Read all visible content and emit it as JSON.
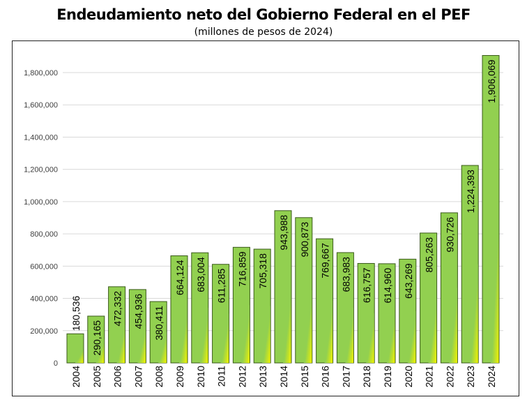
{
  "chart_data": {
    "type": "bar",
    "title": "Endeudamiento neto del Gobierno Federal en el PEF",
    "subtitle": "(millones de pesos de 2024)",
    "xlabel": "",
    "ylabel": "",
    "ylim": [
      0,
      1800000
    ],
    "yticks": [
      0,
      200000,
      400000,
      600000,
      800000,
      1000000,
      1200000,
      1400000,
      1600000,
      1800000
    ],
    "ytick_labels": [
      "0",
      "200,000",
      "400,000",
      "600,000",
      "800,000",
      "1,000,000",
      "1,200,000",
      "1,400,000",
      "1,600,000",
      "1,800,000"
    ],
    "grid": true,
    "categories": [
      "2004",
      "2005",
      "2006",
      "2007",
      "2008",
      "2009",
      "2010",
      "2011",
      "2012",
      "2013",
      "2014",
      "2015",
      "2016",
      "2017",
      "2018",
      "2019",
      "2020",
      "2021",
      "2022",
      "2023",
      "2024"
    ],
    "values": [
      180536,
      290165,
      472332,
      454936,
      380411,
      664124,
      683004,
      611285,
      716859,
      705318,
      943988,
      900873,
      769667,
      683983,
      616757,
      614960,
      643269,
      805263,
      930726,
      1224393,
      1906069
    ],
    "data_labels": [
      "180,536",
      "290,165",
      "472,332",
      "454,936",
      "380,411",
      "664,124",
      "683,004",
      "611,285",
      "716,859",
      "705,318",
      "943,988",
      "900,873",
      "769,667",
      "683,983",
      "616,757",
      "614,960",
      "643,269",
      "805,263",
      "930,726",
      "1,224,393",
      "1,906,069"
    ],
    "colors": {
      "bar": "#92d050",
      "bar_highlight": "#f2f200",
      "bar_border": "#3a5a1a",
      "grid": "#d9d9d9"
    }
  }
}
